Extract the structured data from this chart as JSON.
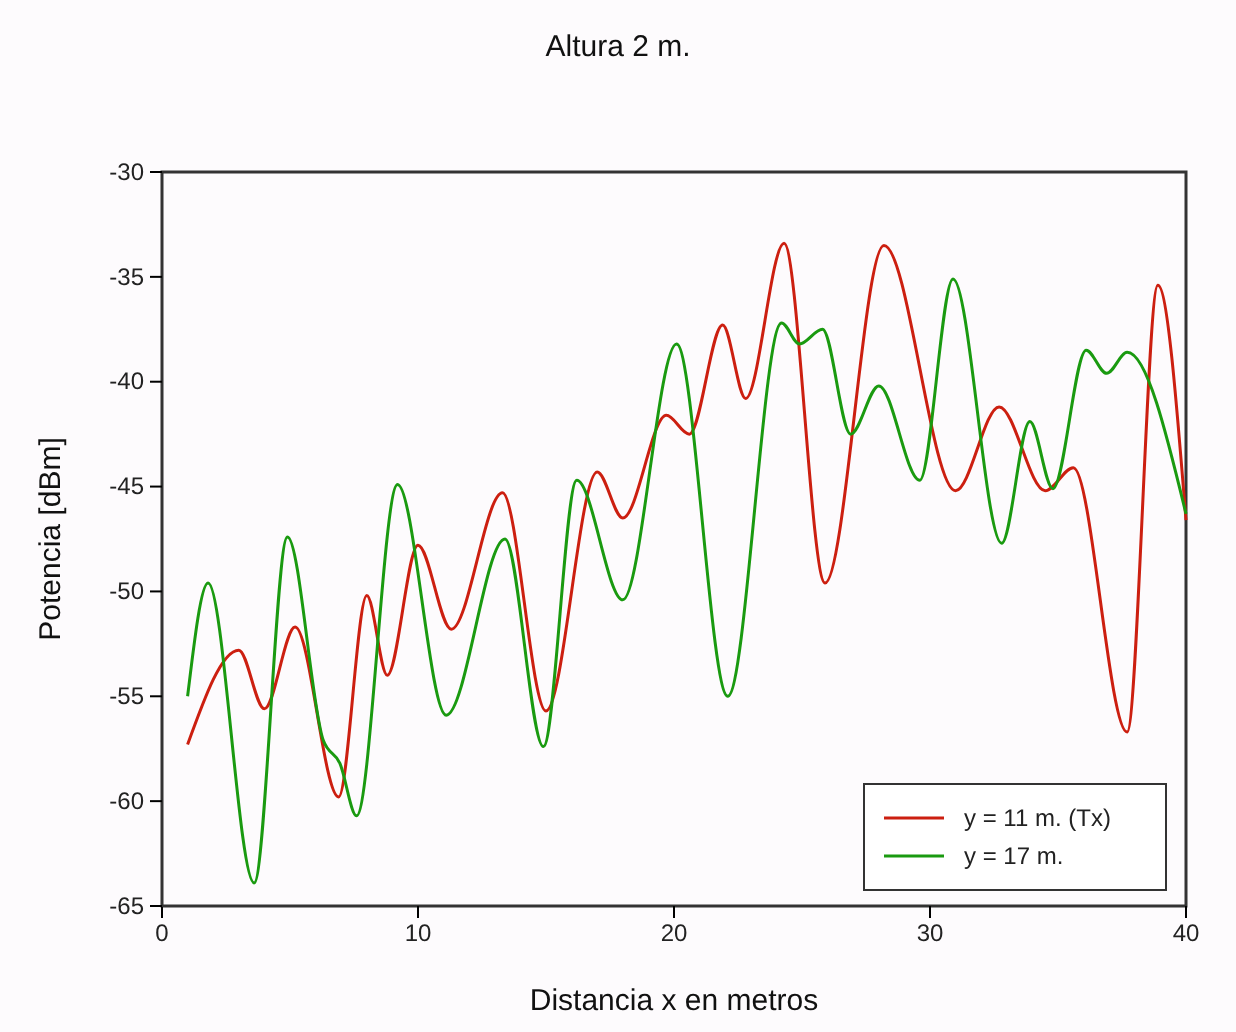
{
  "chart_data": {
    "type": "line",
    "title": "Altura 2 m.",
    "xlabel": "Distancia x en metros",
    "ylabel": "Potencia [dBm]",
    "xlim": [
      0,
      40
    ],
    "xticks": [
      0,
      10,
      20,
      30,
      40
    ],
    "ylim": [
      -65,
      -30
    ],
    "yticks": [
      -65,
      -60,
      -55,
      -50,
      -45,
      -40,
      -35,
      -30
    ],
    "grid": false,
    "legend": "bottom right",
    "marker": "none",
    "line_style": "solid",
    "series": [
      {
        "name": "y = 11 m. (Tx)",
        "color": "#cc1f10",
        "x": [
          1,
          3,
          4,
          5.2,
          6.9,
          8,
          8.8,
          10,
          11.3,
          13.3,
          15,
          17,
          18,
          19.7,
          20.6,
          21.9,
          22.8,
          24.3,
          25.9,
          28.2,
          31,
          32.7,
          34.5,
          35.6,
          37.7,
          38.9,
          40
        ],
        "values": [
          -57.3,
          -52.8,
          -55.6,
          -51.7,
          -59.8,
          -50.2,
          -54,
          -47.8,
          -51.8,
          -45.3,
          -55.7,
          -44.3,
          -46.5,
          -41.6,
          -42.5,
          -37.3,
          -40.8,
          -33.4,
          -49.6,
          -33.5,
          -45.2,
          -41.2,
          -45.2,
          -44.1,
          -56.7,
          -35.4,
          -46.6
        ]
      },
      {
        "name": "y = 17 m.",
        "color": "#1a9a10",
        "x": [
          1,
          1.8,
          3.6,
          4.9,
          6.3,
          6.95,
          7.6,
          9.2,
          11.1,
          13.4,
          14.9,
          16.2,
          18,
          20.1,
          22.1,
          24.2,
          24.9,
          25.8,
          26.9,
          28,
          29.6,
          30.9,
          32.8,
          33.9,
          34.8,
          36.1,
          36.9,
          37.7,
          40
        ],
        "values": [
          -55,
          -49.6,
          -63.9,
          -47.4,
          -57.1,
          -58.2,
          -60.7,
          -44.9,
          -55.9,
          -47.5,
          -57.4,
          -44.7,
          -50.4,
          -38.2,
          -55,
          -37.2,
          -38.2,
          -37.5,
          -42.5,
          -40.2,
          -44.7,
          -35.1,
          -47.7,
          -41.9,
          -45.1,
          -38.5,
          -39.6,
          -38.6,
          -46.3
        ]
      }
    ]
  }
}
